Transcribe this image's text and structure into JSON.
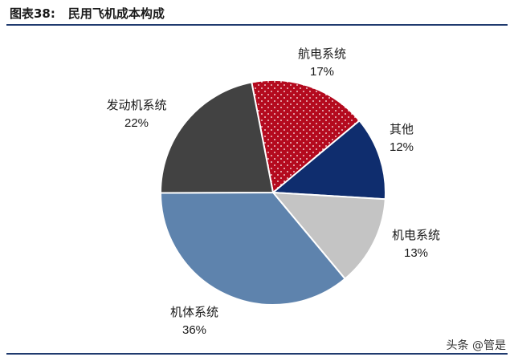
{
  "header": {
    "figure_label": "图表38:",
    "title": "民用飞机成本构成"
  },
  "watermark": "头条 @管是",
  "chart_data": {
    "type": "pie",
    "title": "民用飞机成本构成",
    "slices": [
      {
        "label": "航电系统",
        "value": 17,
        "value_text": "17%",
        "color": "#b40a1e",
        "pattern": "dots"
      },
      {
        "label": "其他",
        "value": 12,
        "value_text": "12%",
        "color": "#0f2d6e"
      },
      {
        "label": "机电系统",
        "value": 13,
        "value_text": "13%",
        "color": "#c4c4c4"
      },
      {
        "label": "机体系统",
        "value": 36,
        "value_text": "36%",
        "color": "#5e83ad"
      },
      {
        "label": "发动机系统",
        "value": 22,
        "value_text": "22%",
        "color": "#424242"
      }
    ]
  }
}
